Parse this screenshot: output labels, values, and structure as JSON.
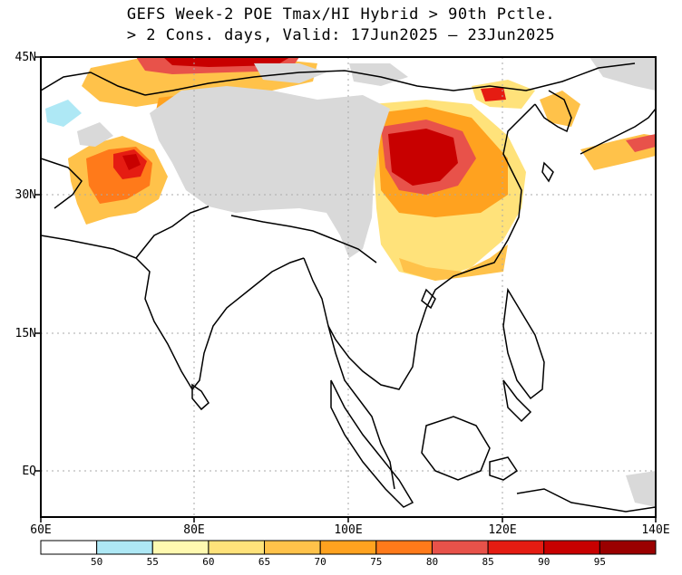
{
  "title": {
    "line1": "GEFS Week-2 POE Tmax/HI Hybrid > 90th Pctle.",
    "line2": "> 2 Cons. days, Valid: 17Jun2025 – 23Jun2025"
  },
  "axes": {
    "lat_labels": [
      "45N",
      "30N",
      "15N",
      "EQ"
    ],
    "lon_labels": [
      "60E",
      "80E",
      "100E",
      "120E",
      "140E"
    ]
  },
  "colorbar": {
    "labels": [
      "50",
      "55",
      "60",
      "65",
      "70",
      "75",
      "80",
      "85",
      "90",
      "95"
    ],
    "colors": [
      "#ffffff",
      "#aee8f5",
      "#fff9b0",
      "#ffe27a",
      "#ffc24a",
      "#ffa21f",
      "#ff7a1a",
      "#e8524a",
      "#e51c12",
      "#c80000",
      "#9a0000"
    ]
  },
  "colors": {
    "terrain_mask": "#d9d9d9",
    "grid": "#aaaaaa",
    "coast": "#000000"
  }
}
